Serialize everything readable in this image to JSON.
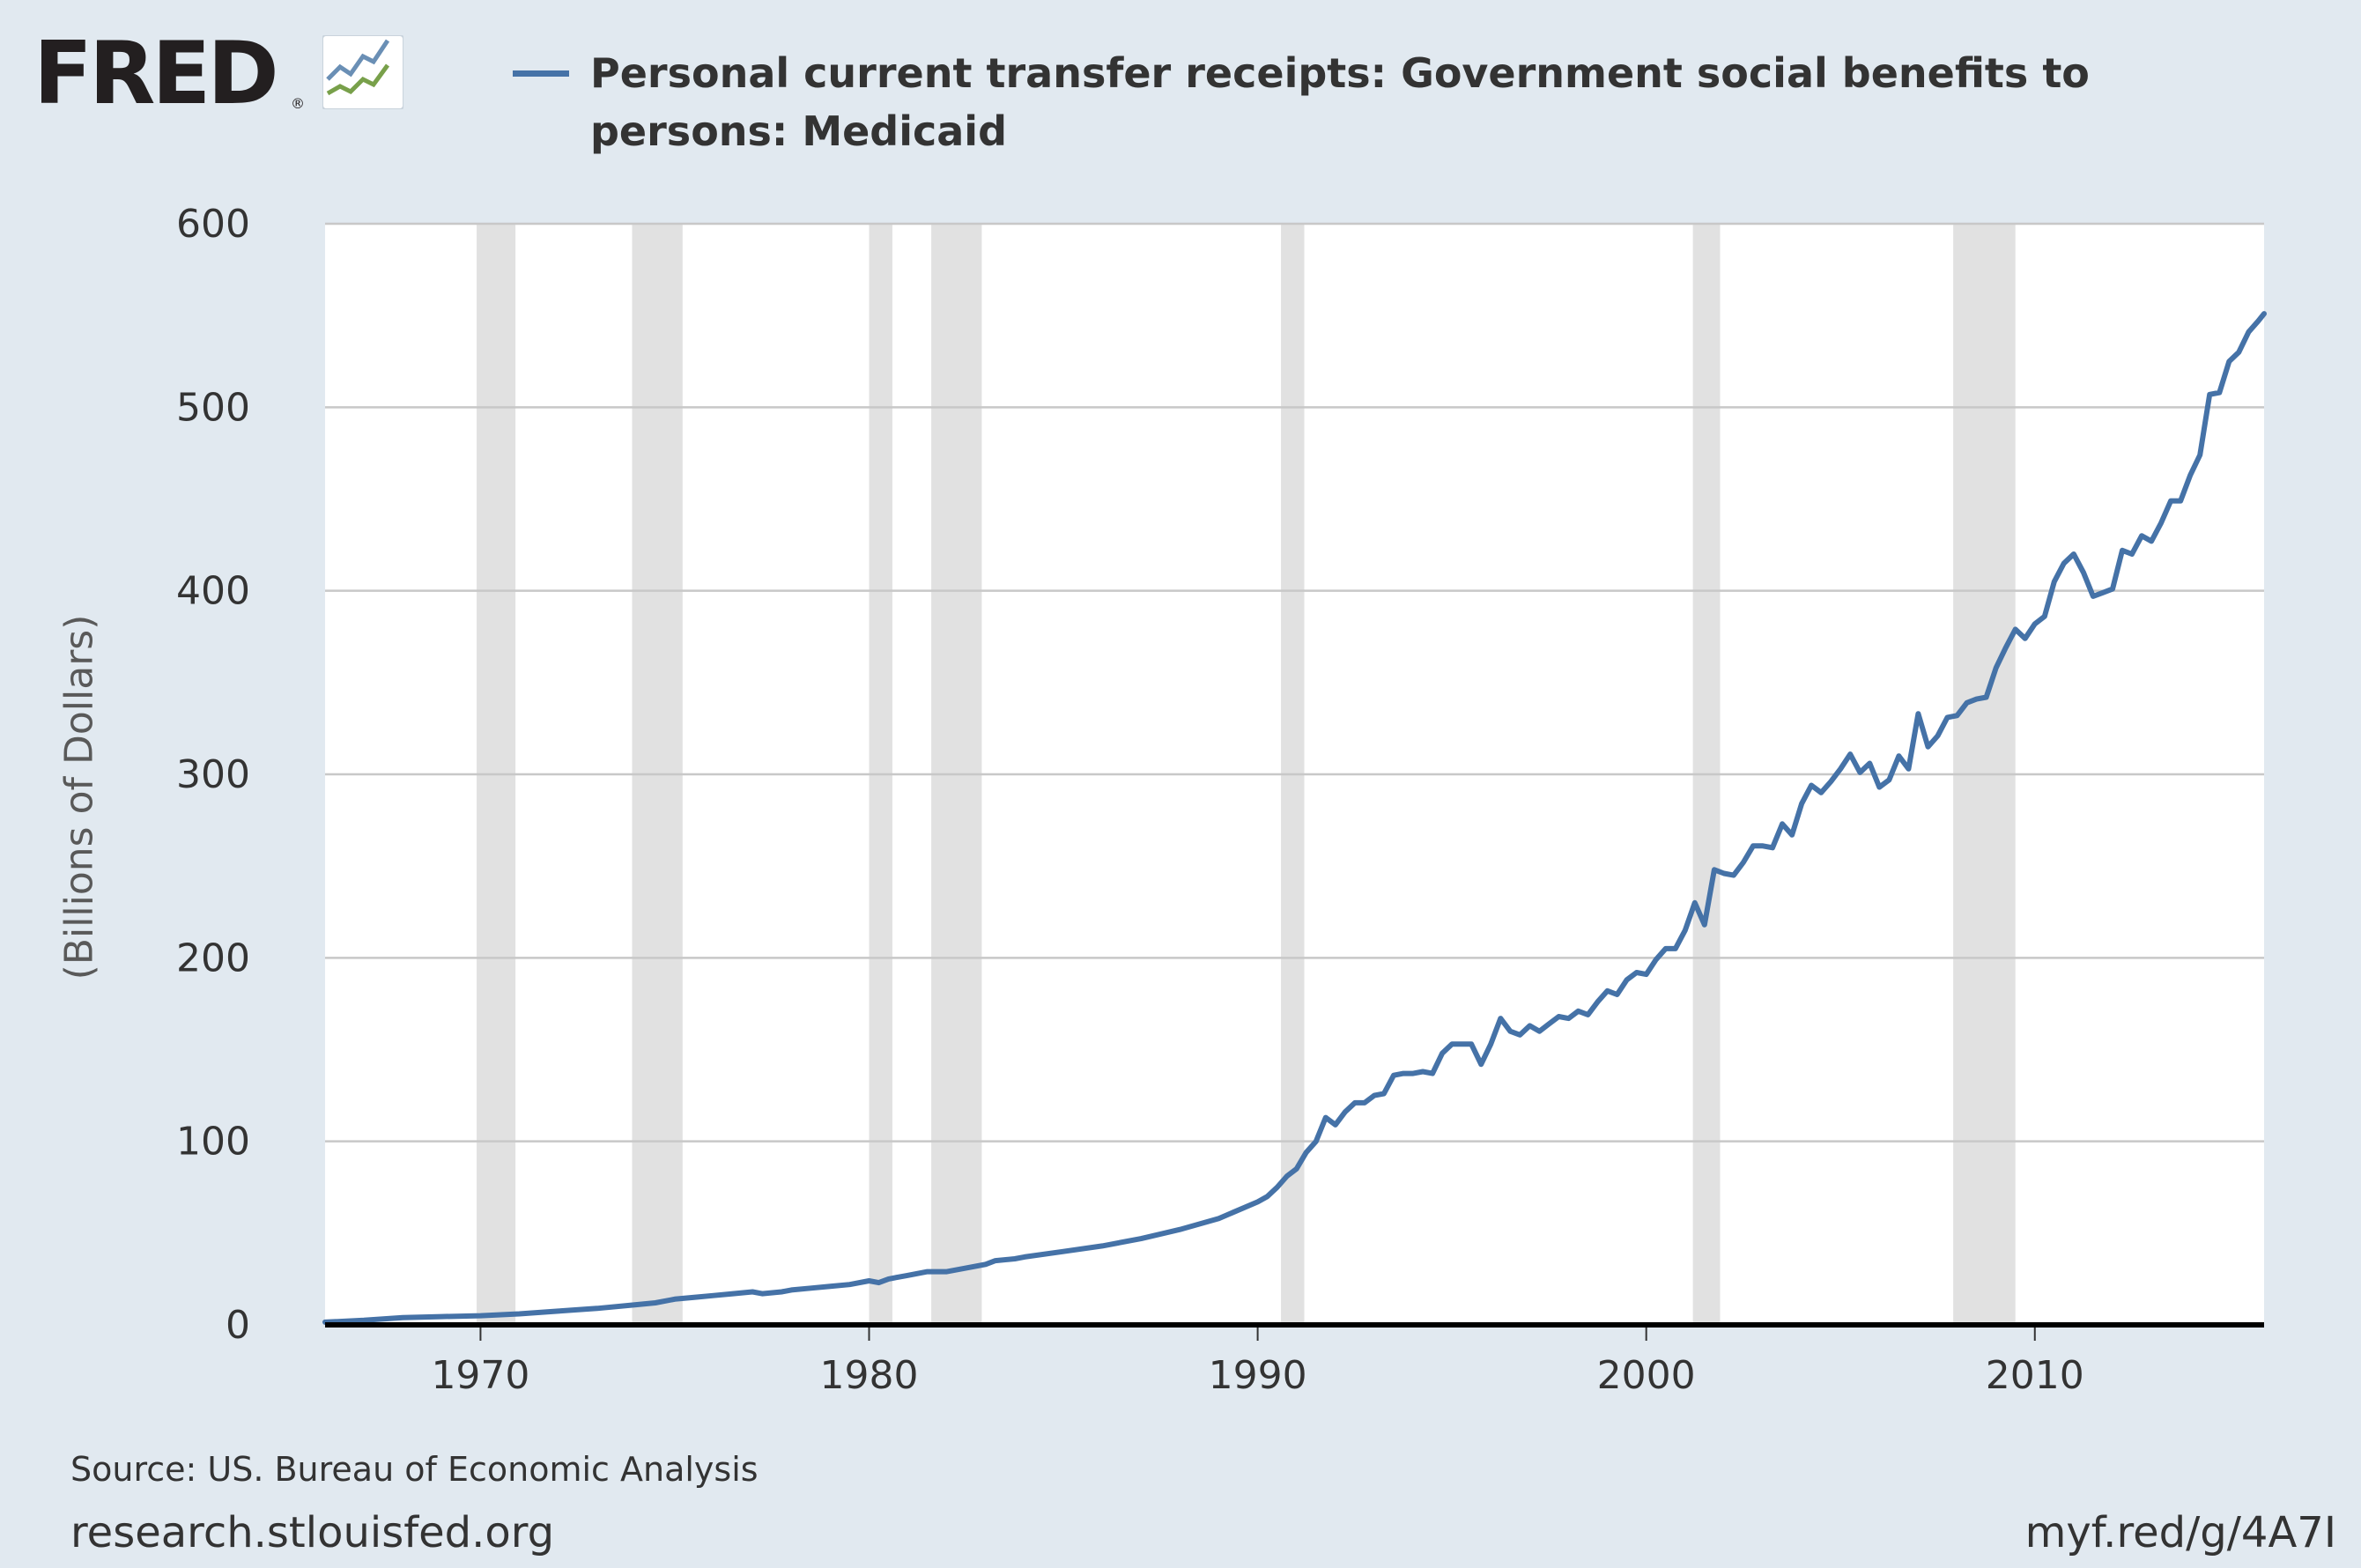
{
  "logo": {
    "text": "FRED",
    "reg": "®",
    "icon": "fred-chart-icon"
  },
  "colors": {
    "series": "#4572a7",
    "recession": "#e1e1e1",
    "background": "#e1e9f0",
    "plot_bg": "#ffffff"
  },
  "footer": {
    "source": "Source: US. Bureau of Economic Analysis",
    "site": "research.stlouisfed.org",
    "shortlink": "myf.red/g/4A7I"
  },
  "chart_data": {
    "type": "line",
    "title": "Personal current transfer receipts: Government social benefits to persons: Medicaid",
    "xlabel": "",
    "ylabel": "(Billions of Dollars)",
    "xlim": [
      1966.0,
      2015.9
    ],
    "ylim": [
      0,
      600
    ],
    "grid": true,
    "yticks": [
      0,
      100,
      200,
      300,
      400,
      500,
      600
    ],
    "xticks": [
      1970,
      1980,
      1990,
      2000,
      2010
    ],
    "recessions": [
      [
        1969.9,
        1970.9
      ],
      [
        1973.9,
        1975.2
      ],
      [
        1980.0,
        1980.6
      ],
      [
        1981.6,
        1982.9
      ],
      [
        1990.6,
        1991.2
      ],
      [
        2001.2,
        2001.9
      ],
      [
        2007.9,
        2009.5
      ]
    ],
    "series": [
      {
        "name": "Personal current transfer receipts: Government social benefits to persons: Medicaid",
        "x": [
          1966.0,
          1967.0,
          1968.0,
          1969.0,
          1970.0,
          1971.0,
          1972.0,
          1973.0,
          1974.0,
          1974.5,
          1975.0,
          1975.5,
          1976.0,
          1976.5,
          1977.0,
          1977.25,
          1977.75,
          1978.0,
          1978.5,
          1979.0,
          1979.5,
          1980.0,
          1980.25,
          1980.5,
          1980.75,
          1981.0,
          1981.5,
          1982.0,
          1982.5,
          1983.0,
          1983.25,
          1983.75,
          1984.0,
          1985.0,
          1986.0,
          1987.0,
          1988.0,
          1989.0,
          1990.0,
          1990.25,
          1990.5,
          1990.75,
          1991.0,
          1991.25,
          1991.5,
          1991.75,
          1992.0,
          1992.25,
          1992.5,
          1992.75,
          1993.0,
          1993.25,
          1993.5,
          1993.75,
          1994.0,
          1994.25,
          1994.5,
          1994.75,
          1995.0,
          1995.25,
          1995.5,
          1995.75,
          1996.0,
          1996.25,
          1996.5,
          1996.75,
          1997.0,
          1997.25,
          1997.5,
          1997.75,
          1998.0,
          1998.25,
          1998.5,
          1998.75,
          1999.0,
          1999.25,
          1999.5,
          1999.75,
          2000.0,
          2000.25,
          2000.5,
          2000.75,
          2001.0,
          2001.25,
          2001.5,
          2001.75,
          2002.0,
          2002.25,
          2002.5,
          2002.75,
          2003.0,
          2003.25,
          2003.5,
          2003.75,
          2004.0,
          2004.25,
          2004.5,
          2004.75,
          2005.0,
          2005.25,
          2005.5,
          2005.75,
          2006.0,
          2006.25,
          2006.5,
          2006.75,
          2007.0,
          2007.25,
          2007.5,
          2007.75,
          2008.0,
          2008.25,
          2008.5,
          2008.75,
          2009.0,
          2009.25,
          2009.5,
          2009.75,
          2010.0,
          2010.25,
          2010.5,
          2010.75,
          2011.0,
          2011.25,
          2011.5,
          2011.75,
          2012.0,
          2012.25,
          2012.5,
          2012.75,
          2013.0,
          2013.25,
          2013.5,
          2013.75,
          2014.0,
          2014.25,
          2014.5,
          2014.75,
          2015.0,
          2015.25,
          2015.5,
          2015.75,
          2015.9
        ],
        "values": [
          1.5,
          2.5,
          4,
          4.5,
          5,
          6,
          7.5,
          9,
          11,
          12,
          14,
          15,
          16,
          17,
          18,
          17,
          18,
          19,
          20,
          21,
          22,
          24,
          23,
          25,
          26,
          27,
          29,
          29,
          31,
          33,
          35,
          36,
          37,
          40,
          43,
          47,
          52,
          58,
          67,
          70,
          75,
          81,
          85,
          94,
          100,
          113,
          109,
          116,
          121,
          121,
          125,
          126,
          136,
          137,
          137,
          138,
          137,
          148,
          153,
          153,
          153,
          142,
          153,
          167,
          160,
          158,
          163,
          160,
          164,
          168,
          167,
          171,
          169,
          176,
          182,
          180,
          188,
          192,
          191,
          199,
          205,
          205,
          215,
          230,
          218,
          248,
          246,
          245,
          252,
          261,
          261,
          260,
          273,
          267,
          284,
          294,
          290,
          296,
          303,
          311,
          301,
          306,
          293,
          297,
          310,
          303,
          333,
          315,
          321,
          331,
          332,
          339,
          341,
          342,
          358,
          369,
          379,
          374,
          382,
          386,
          405,
          415,
          420,
          410,
          397,
          399,
          401,
          422,
          420,
          430,
          427,
          437,
          449,
          449,
          463,
          474,
          507,
          508,
          525,
          530,
          541,
          547,
          551
        ]
      }
    ]
  }
}
